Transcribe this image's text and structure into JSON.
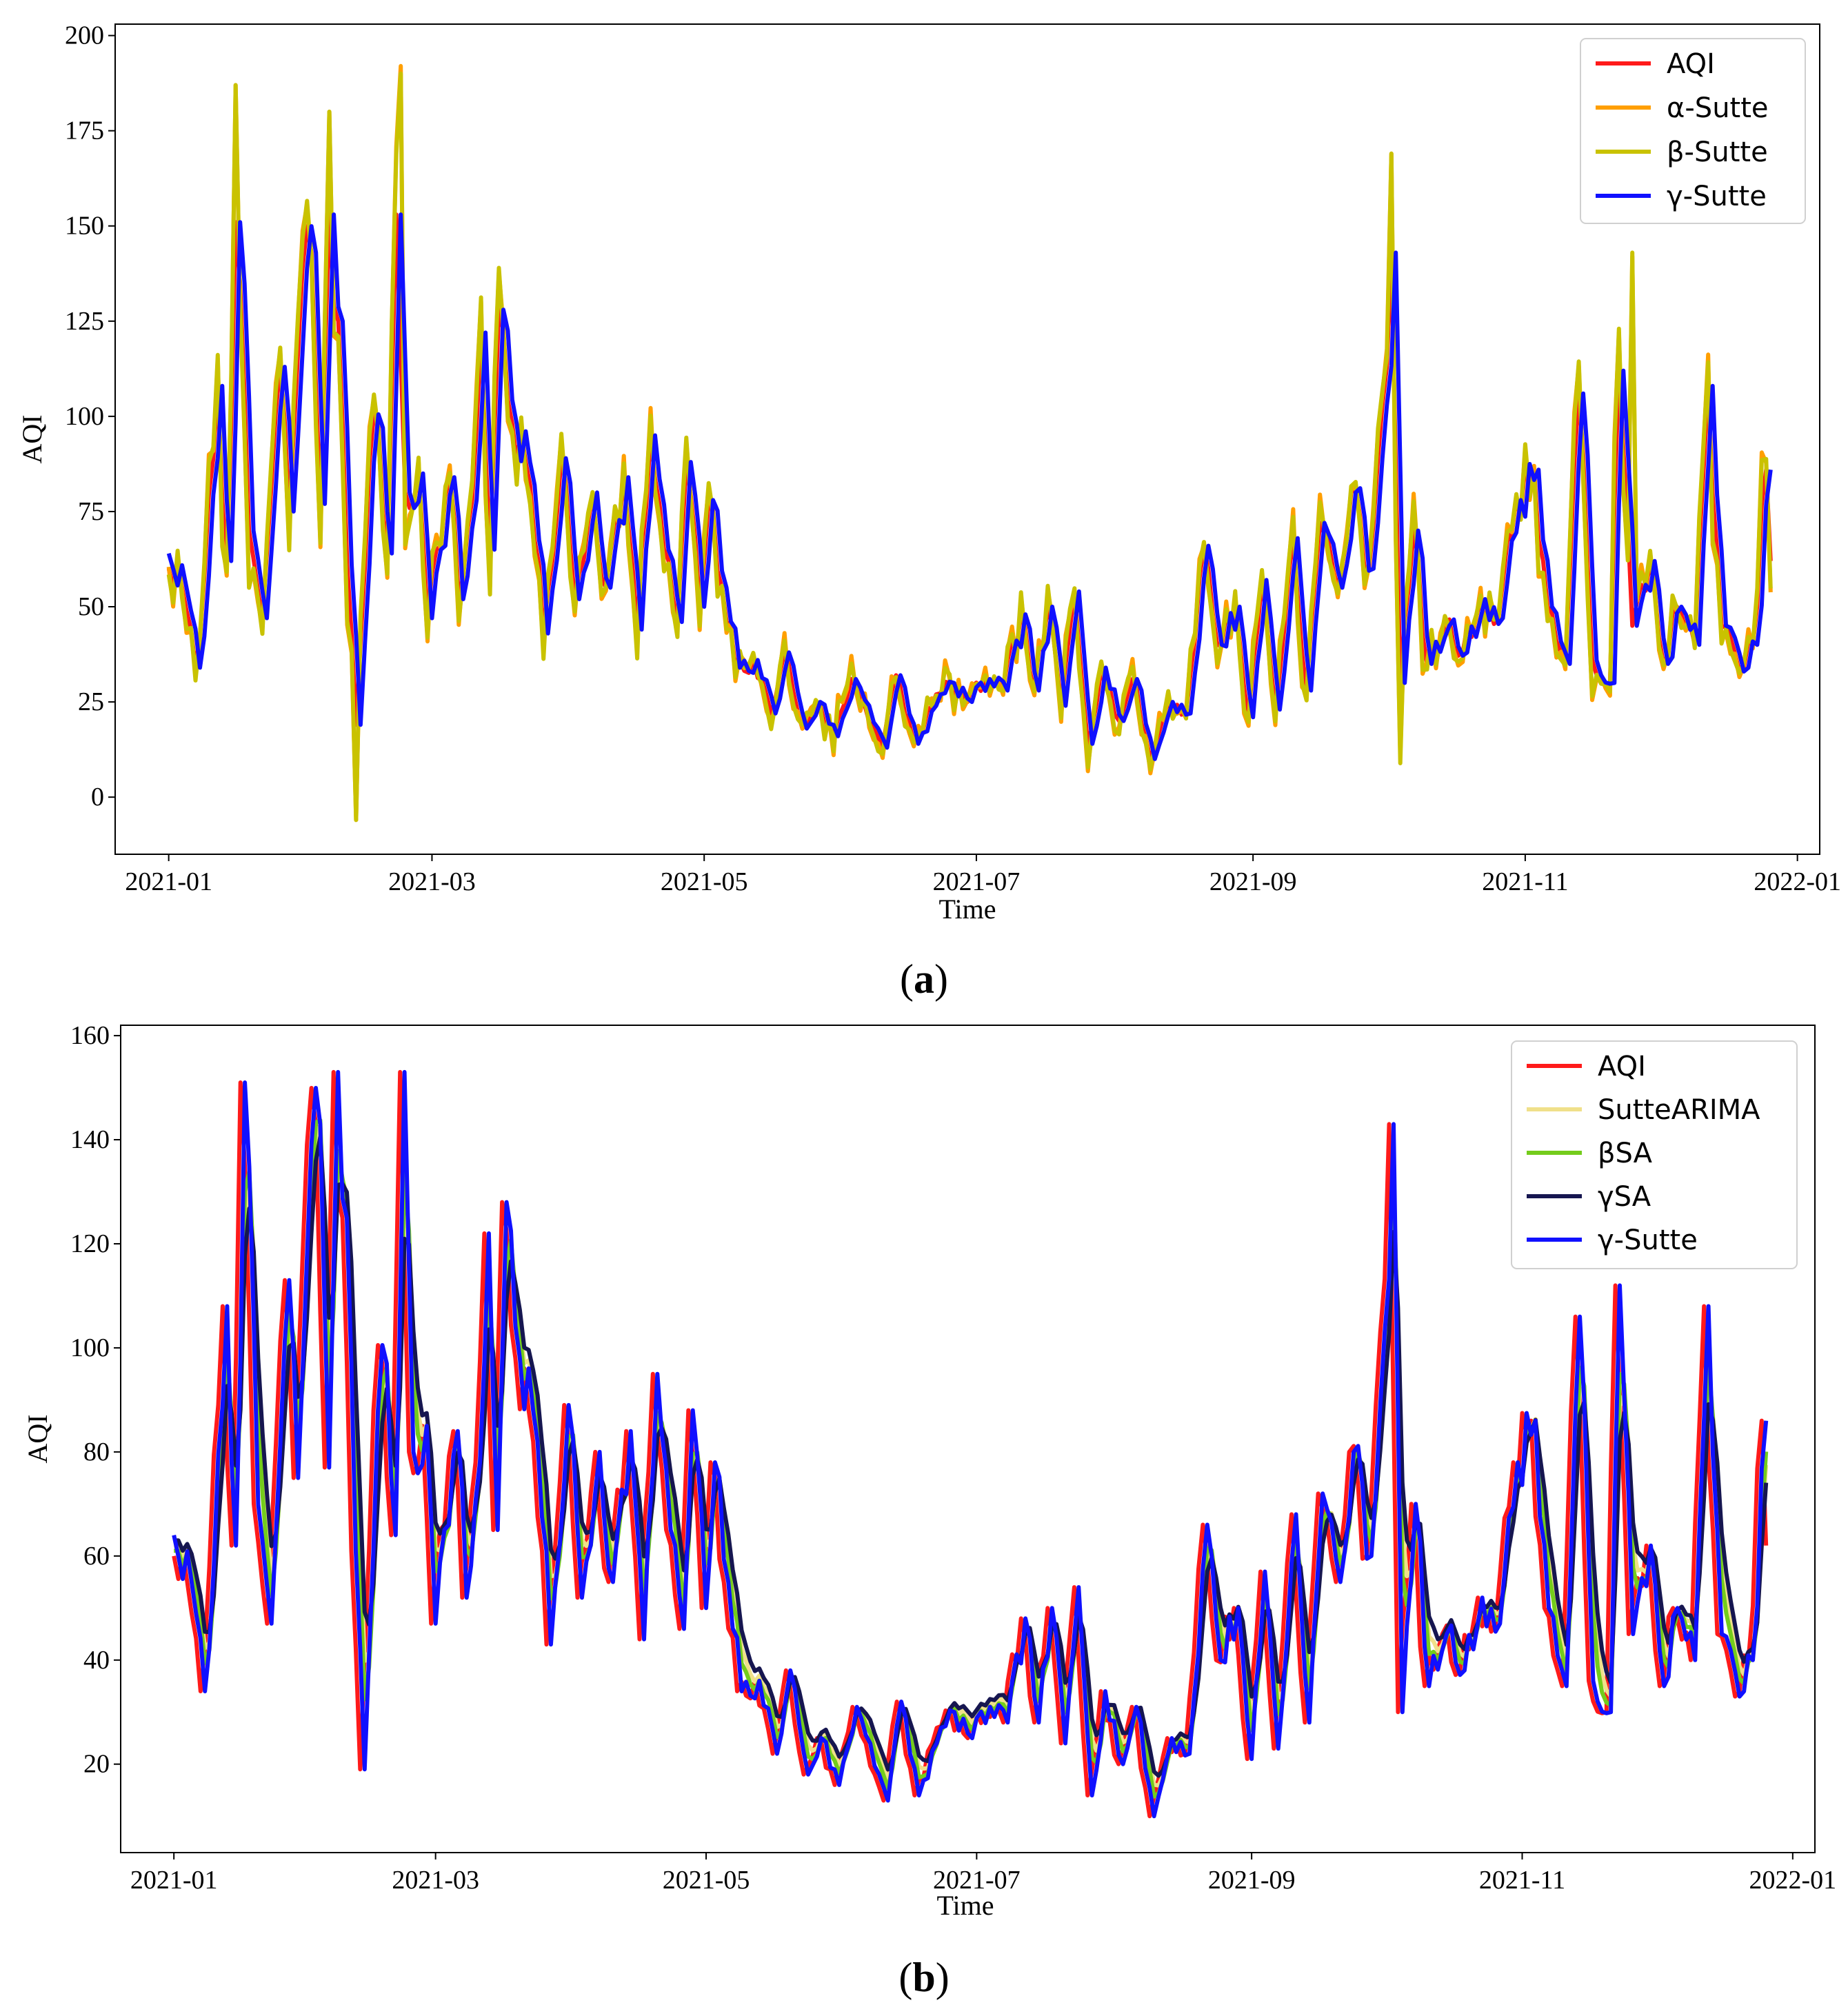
{
  "chart_data": [
    {
      "type": "line",
      "panel_label": "a",
      "xlabel": "Time",
      "ylabel": "AQI",
      "ylim": [
        -15,
        203
      ],
      "xlim": [
        "2020-12-20",
        "2022-01-06"
      ],
      "yticks": [
        0,
        25,
        50,
        75,
        100,
        125,
        150,
        175,
        200
      ],
      "xticks": [
        "2021-01",
        "2021-03",
        "2021-05",
        "2021-07",
        "2021-09",
        "2021-11",
        "2022-01"
      ],
      "legend_position": "top-right",
      "series": [
        {
          "name": "AQI",
          "color": "#ff1a1a"
        },
        {
          "name": "α-Sutte",
          "color": "#ff9f00"
        },
        {
          "name": "β-Sutte",
          "color": "#c9c200"
        },
        {
          "name": "γ-Sutte",
          "color": "#1010ff"
        }
      ],
      "aqi_keypoints": [
        [
          "2021-01-01",
          60
        ],
        [
          "2021-01-04",
          55
        ],
        [
          "2021-01-07",
          34
        ],
        [
          "2021-01-09",
          58
        ],
        [
          "2021-01-12",
          108
        ],
        [
          "2021-01-14",
          62
        ],
        [
          "2021-01-16",
          151
        ],
        [
          "2021-01-19",
          70
        ],
        [
          "2021-01-22",
          47
        ],
        [
          "2021-01-26",
          113
        ],
        [
          "2021-01-28",
          75
        ],
        [
          "2021-01-31",
          139
        ],
        [
          "2021-02-02",
          143
        ],
        [
          "2021-02-04",
          77
        ],
        [
          "2021-02-06",
          153
        ],
        [
          "2021-02-08",
          125
        ],
        [
          "2021-02-10",
          61
        ],
        [
          "2021-02-12",
          19
        ],
        [
          "2021-02-15",
          88
        ],
        [
          "2021-02-17",
          97
        ],
        [
          "2021-02-19",
          64
        ],
        [
          "2021-02-21",
          153
        ],
        [
          "2021-02-23",
          80
        ],
        [
          "2021-02-26",
          85
        ],
        [
          "2021-02-28",
          47
        ],
        [
          "2021-03-02",
          65
        ],
        [
          "2021-03-05",
          84
        ],
        [
          "2021-03-07",
          52
        ],
        [
          "2021-03-10",
          78
        ],
        [
          "2021-03-12",
          122
        ],
        [
          "2021-03-14",
          65
        ],
        [
          "2021-03-16",
          128
        ],
        [
          "2021-03-19",
          98
        ],
        [
          "2021-03-23",
          82
        ],
        [
          "2021-03-26",
          43
        ],
        [
          "2021-03-30",
          89
        ],
        [
          "2021-04-02",
          52
        ],
        [
          "2021-04-06",
          80
        ],
        [
          "2021-04-09",
          55
        ],
        [
          "2021-04-13",
          84
        ],
        [
          "2021-04-16",
          44
        ],
        [
          "2021-04-19",
          95
        ],
        [
          "2021-04-22",
          65
        ],
        [
          "2021-04-25",
          46
        ],
        [
          "2021-04-27",
          88
        ],
        [
          "2021-04-30",
          50
        ],
        [
          "2021-05-02",
          78
        ],
        [
          "2021-05-05",
          55
        ],
        [
          "2021-05-08",
          34
        ],
        [
          "2021-05-12",
          36
        ],
        [
          "2021-05-16",
          22
        ],
        [
          "2021-05-19",
          38
        ],
        [
          "2021-05-23",
          18
        ],
        [
          "2021-05-26",
          25
        ],
        [
          "2021-05-30",
          16
        ],
        [
          "2021-06-03",
          31
        ],
        [
          "2021-06-06",
          24
        ],
        [
          "2021-06-10",
          13
        ],
        [
          "2021-06-13",
          32
        ],
        [
          "2021-06-17",
          14
        ],
        [
          "2021-06-21",
          24
        ],
        [
          "2021-06-25",
          30
        ],
        [
          "2021-06-29",
          25
        ],
        [
          "2021-07-03",
          31
        ],
        [
          "2021-07-07",
          28
        ],
        [
          "2021-07-11",
          48
        ],
        [
          "2021-07-14",
          28
        ],
        [
          "2021-07-17",
          50
        ],
        [
          "2021-07-20",
          24
        ],
        [
          "2021-07-23",
          54
        ],
        [
          "2021-07-26",
          14
        ],
        [
          "2021-07-29",
          34
        ],
        [
          "2021-08-02",
          20
        ],
        [
          "2021-08-05",
          31
        ],
        [
          "2021-08-09",
          10
        ],
        [
          "2021-08-13",
          25
        ],
        [
          "2021-08-17",
          22
        ],
        [
          "2021-08-21",
          66
        ],
        [
          "2021-08-24",
          40
        ],
        [
          "2021-08-28",
          50
        ],
        [
          "2021-08-31",
          21
        ],
        [
          "2021-09-03",
          57
        ],
        [
          "2021-09-06",
          23
        ],
        [
          "2021-09-10",
          68
        ],
        [
          "2021-09-13",
          28
        ],
        [
          "2021-09-16",
          72
        ],
        [
          "2021-09-20",
          55
        ],
        [
          "2021-09-23",
          80
        ],
        [
          "2021-09-27",
          60
        ],
        [
          "2021-09-30",
          103
        ],
        [
          "2021-10-02",
          143
        ],
        [
          "2021-10-04",
          30
        ],
        [
          "2021-10-07",
          70
        ],
        [
          "2021-10-10",
          35
        ],
        [
          "2021-10-14",
          45
        ],
        [
          "2021-10-18",
          38
        ],
        [
          "2021-10-22",
          52
        ],
        [
          "2021-10-26",
          47
        ],
        [
          "2021-10-30",
          78
        ],
        [
          "2021-11-03",
          86
        ],
        [
          "2021-11-06",
          50
        ],
        [
          "2021-11-10",
          35
        ],
        [
          "2021-11-13",
          106
        ],
        [
          "2021-11-16",
          36
        ],
        [
          "2021-11-20",
          30
        ],
        [
          "2021-11-22",
          112
        ],
        [
          "2021-11-25",
          45
        ],
        [
          "2021-11-29",
          62
        ],
        [
          "2021-12-02",
          35
        ],
        [
          "2021-12-05",
          50
        ],
        [
          "2021-12-09",
          40
        ],
        [
          "2021-12-12",
          108
        ],
        [
          "2021-12-15",
          45
        ],
        [
          "2021-12-19",
          33
        ],
        [
          "2021-12-22",
          40
        ],
        [
          "2021-12-25",
          86
        ],
        [
          "2021-12-26",
          62
        ]
      ],
      "alpha_sutte_peaks": [
        [
          "2021-01-16",
          187
        ],
        [
          "2021-02-22",
          192
        ],
        [
          "2021-02-06",
          180
        ],
        [
          "2021-10-02",
          169
        ],
        [
          "2021-02-12",
          -6
        ]
      ],
      "beta_sutte_peaks": [
        [
          "2021-01-16",
          187
        ],
        [
          "2021-02-22",
          190
        ],
        [
          "2021-02-06",
          180
        ],
        [
          "2021-10-02",
          169
        ],
        [
          "2021-11-25",
          143
        ],
        [
          "2021-02-12",
          -6
        ]
      ]
    },
    {
      "type": "line",
      "panel_label": "b",
      "xlabel": "Time",
      "ylabel": "AQI",
      "ylim": [
        3,
        162
      ],
      "xlim": [
        "2020-12-20",
        "2022-01-06"
      ],
      "yticks": [
        20,
        40,
        60,
        80,
        100,
        120,
        140,
        160
      ],
      "xticks": [
        "2021-01",
        "2021-03",
        "2021-05",
        "2021-07",
        "2021-09",
        "2021-11",
        "2022-01"
      ],
      "legend_position": "top-right",
      "series": [
        {
          "name": "AQI",
          "color": "#ff1a1a"
        },
        {
          "name": "SutteARIMA",
          "color": "#f0e08a"
        },
        {
          "name": "βSA",
          "color": "#74cc1c"
        },
        {
          "name": "γSA",
          "color": "#161650"
        },
        {
          "name": "γ-Sutte",
          "color": "#1010ff"
        }
      ],
      "aqi_keypoints": "same as panel a",
      "gamma_sa_smoothing": 0.45,
      "beta_sa_smoothing": 0.65
    }
  ],
  "texts": {
    "panel_a_label_open": "(",
    "panel_a_label_letter": "a",
    "panel_a_label_close": ")",
    "panel_b_label_open": "(",
    "panel_b_label_letter": "b",
    "panel_b_label_close": ")"
  }
}
